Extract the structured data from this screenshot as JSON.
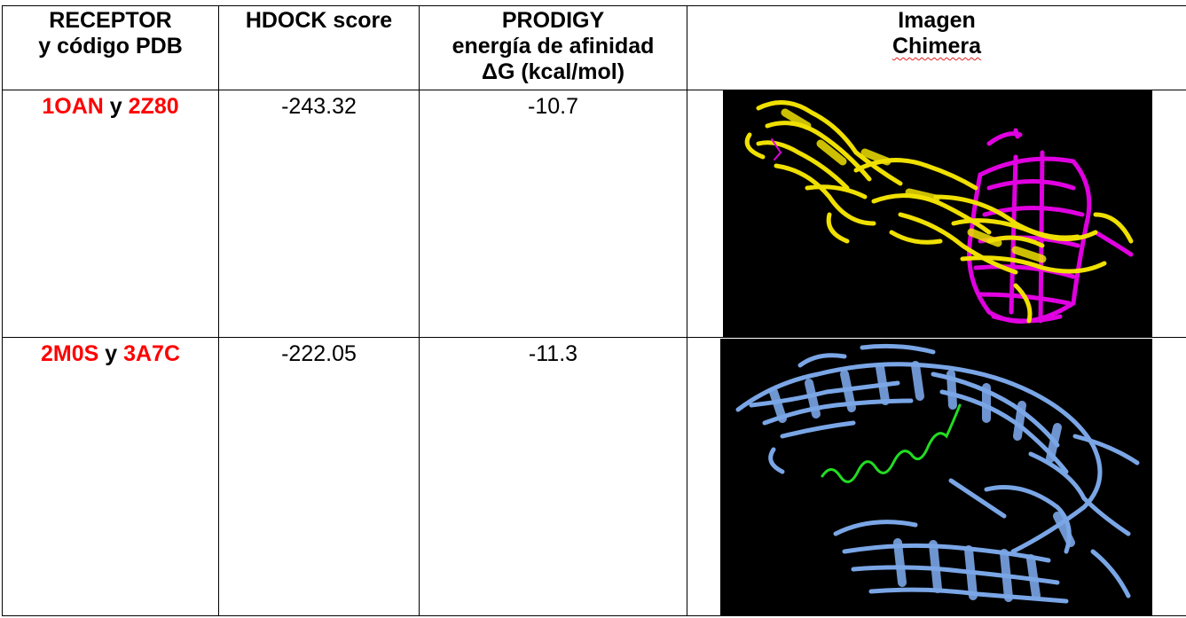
{
  "headers": {
    "receptor_line1": "RECEPTOR",
    "receptor_line2": "y código PDB",
    "hdock": "HDOCK score",
    "prodigy_line1": "PRODIGY",
    "prodigy_line2": "energía de afinidad",
    "prodigy_line3": "ΔG (kcal/mol)",
    "image_line1": "Imagen",
    "image_line2": "Chimera"
  },
  "rows": [
    {
      "receptor": "1OAN",
      "connector": "y",
      "ligand": "2Z80",
      "hdock_score": "-243.32",
      "prodigy_dg": "-10.7",
      "image_colors": [
        "#f0e000",
        "#e000e0"
      ]
    },
    {
      "receptor": "2M0S",
      "connector": "y",
      "ligand": "3A7C",
      "hdock_score": "-222.05",
      "prodigy_dg": "-11.3",
      "image_colors": [
        "#7aa6e6",
        "#22dd22"
      ]
    }
  ],
  "colors": {
    "pdb_code": "#ff0000",
    "image_background": "#000000"
  }
}
